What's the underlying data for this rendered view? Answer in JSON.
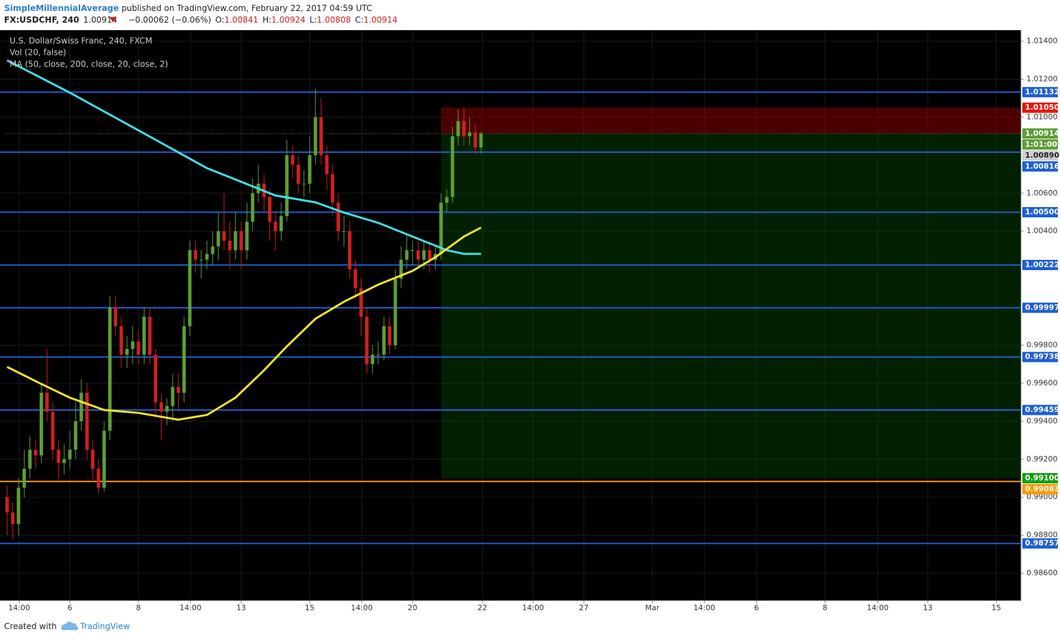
{
  "header": {
    "author": "SimpleMillennialAverage",
    "published": " published on TradingView.com, February 22, 2017 04:59 UTC",
    "symbol": "FX:USDCHF, 240",
    "change": "−0.00062 (−0.06%)",
    "o_label": "O:",
    "h_label": "H:",
    "l_label": "L:",
    "c_label": "C:"
  },
  "chart_data": {
    "type": "candlestick",
    "legend": [
      "U.S. Dollar/Swiss Franc, 240, FXCM",
      "Vol (20, false)",
      "MA (50, close, 200, close, 20, close, 2)"
    ],
    "x": [
      -11,
      -10,
      -9,
      -8,
      -7,
      -6,
      -5,
      -4,
      -3,
      -2,
      -1,
      0,
      1,
      2,
      3,
      4,
      5,
      6,
      7,
      8,
      9,
      10,
      11,
      12,
      13,
      14,
      15,
      16,
      17,
      18,
      19,
      20,
      21,
      22,
      23,
      24,
      25,
      26,
      27,
      28,
      29,
      30,
      31,
      32,
      33,
      34,
      35,
      36,
      37,
      38,
      39,
      40,
      41,
      42,
      43,
      44,
      45,
      46,
      47,
      48,
      49,
      50,
      51,
      52,
      53,
      54,
      55,
      56,
      57,
      58,
      59,
      60,
      61,
      62,
      63,
      64,
      65,
      66,
      67,
      68,
      69,
      70,
      71,
      72
    ],
    "open": [
      0.99,
      0.9892,
      0.9886,
      0.9905,
      0.9915,
      0.9925,
      0.9922,
      0.9955,
      0.9945,
      0.9925,
      0.9918,
      0.992,
      0.9925,
      0.994,
      0.9955,
      0.9925,
      0.9915,
      0.9905,
      0.9935,
      1,
      0.999,
      0.9975,
      0.9978,
      0.9982,
      0.9975,
      0.9995,
      0.9975,
      0.995,
      0.9945,
      0.9948,
      0.9958,
      0.9955,
      0.999,
      1.003,
      1.0025,
      1.0025,
      1.0028,
      1.0032,
      1.004,
      1.0035,
      1.003,
      1.004,
      1.003,
      1.0045,
      1.006,
      1.0065,
      1.0058,
      1.0045,
      1.004,
      1.0048,
      1.008,
      1.0075,
      1.0065,
      1.0065,
      1.008,
      1.01,
      1.008,
      1.007,
      1.0055,
      1.004,
      1.004,
      1.002,
      1.001,
      0.9995,
      0.997,
      0.9975,
      0.9975,
      0.999,
      0.998,
      1.0015,
      1.0025,
      1.003,
      1.003,
      1.0025,
      1.003,
      1.0025,
      1.0028,
      1.0055,
      1.0058,
      1.009,
      1.0098,
      1.009,
      1.0092,
      1.00841
    ],
    "high": [
      0.9906,
      0.9897,
      0.991,
      0.9925,
      0.9932,
      0.993,
      0.996,
      0.9978,
      0.995,
      0.993,
      0.9928,
      0.9935,
      0.995,
      0.9962,
      0.996,
      0.993,
      0.992,
      0.994,
      1.0006,
      1.0006,
      0.9995,
      0.9985,
      0.999,
      0.9988,
      1,
      1,
      0.9978,
      0.9955,
      0.9952,
      0.9965,
      0.9965,
      0.9995,
      1.0035,
      1.0035,
      1.003,
      1.0035,
      1.004,
      1.005,
      1.006,
      1.0045,
      1.005,
      1.0045,
      1.0055,
      1.0068,
      1.0075,
      1.007,
      1.0062,
      1.005,
      1.0055,
      1.0088,
      1.0085,
      1.008,
      1.0072,
      1.009,
      1.0115,
      1.011,
      1.0085,
      1.0075,
      1.006,
      1.0048,
      1.0045,
      1.0025,
      1.0015,
      1,
      0.998,
      0.9982,
      0.9995,
      0.9995,
      1.002,
      1.0032,
      1.0038,
      1.0035,
      1.0035,
      1.0035,
      1.0035,
      1.0032,
      1.006,
      1.0062,
      1.0095,
      1.0104,
      1.0105,
      1.01,
      1.0096,
      1.00924
    ],
    "low": [
      0.988,
      0.9878,
      0.988,
      0.99,
      0.991,
      0.9915,
      0.9918,
      0.994,
      0.992,
      0.991,
      0.9912,
      0.9915,
      0.992,
      0.9935,
      0.992,
      0.9908,
      0.9902,
      0.9903,
      0.993,
      0.9985,
      0.9968,
      0.9968,
      0.997,
      0.997,
      0.997,
      0.997,
      0.9942,
      0.993,
      0.9938,
      0.994,
      0.9945,
      0.995,
      0.9985,
      1.0018,
      1.0015,
      1.002,
      1.0022,
      1.0025,
      1.003,
      1.002,
      1.0025,
      1.002,
      1.0025,
      1.004,
      1.0055,
      1.005,
      1.0035,
      1.003,
      1.0035,
      1.0045,
      1.0068,
      1.006,
      1.0058,
      1.006,
      1.0075,
      1.0075,
      1.0062,
      1.0048,
      1.0035,
      1.0032,
      1.0015,
      1.0005,
      0.9985,
      0.9965,
      0.9965,
      0.997,
      0.9972,
      0.9975,
      0.9978,
      1.001,
      1.002,
      1.0022,
      1.002,
      1.002,
      1.0018,
      1.002,
      1.0025,
      1.005,
      1.0055,
      1.0085,
      1.0085,
      1.0085,
      1.008,
      1.00808
    ],
    "close": [
      0.9892,
      0.9886,
      0.9905,
      0.9915,
      0.9925,
      0.9922,
      0.9955,
      0.9945,
      0.9925,
      0.9918,
      0.992,
      0.9925,
      0.994,
      0.9955,
      0.9925,
      0.9915,
      0.9905,
      0.9935,
      1,
      0.999,
      0.9975,
      0.9978,
      0.9982,
      0.9975,
      0.9995,
      0.9975,
      0.995,
      0.9945,
      0.9948,
      0.9958,
      0.9955,
      0.999,
      1.003,
      1.0025,
      1.0025,
      1.0028,
      1.0032,
      1.004,
      1.0035,
      1.003,
      1.004,
      1.003,
      1.0045,
      1.006,
      1.0065,
      1.0058,
      1.0045,
      1.004,
      1.0048,
      1.008,
      1.0075,
      1.0065,
      1.0065,
      1.008,
      1.01,
      1.008,
      1.007,
      1.0055,
      1.004,
      1.004,
      1.002,
      1.001,
      0.9995,
      0.997,
      0.9975,
      0.9975,
      0.999,
      0.998,
      1.0015,
      1.0025,
      1.003,
      1.003,
      1.0025,
      1.003,
      1.0025,
      1.0028,
      1.0055,
      1.0058,
      1.009,
      1.0098,
      1.009,
      1.0092,
      1.00841,
      1.00914
    ],
    "up_color": "#5d9e37",
    "down_color": "#d0201e",
    "moving_averages": [
      {
        "color": "#3fe0e8",
        "x": [
          -11,
          0,
          12,
          24,
          36,
          43,
          48,
          54,
          60,
          66,
          69,
          72
        ],
        "values": [
          1.01299,
          1.01129,
          1.00931,
          1.00732,
          1.00588,
          1.00552,
          1.00498,
          1.00444,
          1.00372,
          1.003,
          1.00281,
          1.00281
        ]
      },
      {
        "color": "#f5e52a",
        "x": [
          -11,
          -5,
          0,
          6,
          12,
          19,
          24,
          29,
          34,
          38,
          43,
          48,
          54,
          60,
          64,
          69,
          72
        ],
        "values": [
          0.99686,
          0.99596,
          0.99524,
          0.99459,
          0.99444,
          0.99408,
          0.99433,
          0.99524,
          0.99668,
          0.99794,
          0.99939,
          1.00029,
          1.00119,
          1.00191,
          1.00263,
          1.00372,
          1.00419
        ]
      }
    ],
    "levels": [
      {
        "value": 1.01132,
        "label": "1.01132",
        "color": "#1f5fd4"
      },
      {
        "value": 1.00816,
        "label": "1.00816",
        "color": "#1f5fd4"
      },
      {
        "value": 1.005,
        "label": "1.00500",
        "color": "#1f5fd4"
      },
      {
        "value": 1.00222,
        "label": "1.00222",
        "color": "#1f5fd4"
      },
      {
        "value": 0.99997,
        "label": "0.99997",
        "color": "#1f5fd4"
      },
      {
        "value": 0.99738,
        "label": "0.99738",
        "color": "#1f5fd4"
      },
      {
        "value": 0.99459,
        "label": "0.99459",
        "color": "#1f5fd4"
      },
      {
        "value": 0.99083,
        "label": "0.99083",
        "color": "#ff9800"
      },
      {
        "value": 0.98757,
        "label": "0.98757",
        "color": "#1f5fd4"
      }
    ],
    "price_labels": [
      {
        "value": 1.0105,
        "label": "1.01050",
        "color": "#e8140c"
      },
      {
        "value": 1.00914,
        "label": "1.00914",
        "color": "#5d9e37"
      },
      {
        "value": 1.0089,
        "label": "1.00890",
        "color": "#cfcfcf"
      },
      {
        "value": 0.991,
        "label": "0.99100",
        "color": "#13a013"
      }
    ],
    "countdown": "1:01:00",
    "position": {
      "start": 65,
      "stop": 1.0105,
      "entry": 1.00914,
      "target": 0.991
    },
    "xlim": [
      -11.28,
      166.56
    ],
    "ylim": [
      0.98456,
      1.01458
    ],
    "xticks": [
      {
        "value": -8.88,
        "label": "14:00"
      },
      {
        "value": 0,
        "label": "6"
      },
      {
        "value": 12,
        "label": "8"
      },
      {
        "value": 21.12,
        "label": "14:00"
      },
      {
        "value": 30,
        "label": "13"
      },
      {
        "value": 42,
        "label": "15"
      },
      {
        "value": 51.12,
        "label": "14:00"
      },
      {
        "value": 60,
        "label": "20"
      },
      {
        "value": 72.24,
        "label": "22"
      },
      {
        "value": 81.12,
        "label": "14:00"
      },
      {
        "value": 90,
        "label": "27"
      },
      {
        "value": 102,
        "label": "Mar"
      },
      {
        "value": 111.12,
        "label": "14:00"
      },
      {
        "value": 120.24,
        "label": "6"
      },
      {
        "value": 132.24,
        "label": "8"
      },
      {
        "value": 141.48,
        "label": "14:00"
      },
      {
        "value": 150.24,
        "label": "13"
      },
      {
        "value": 162.24,
        "label": "15"
      }
    ],
    "yticks": [
      {
        "value": 1.014,
        "label": "1.01400"
      },
      {
        "value": 1.012,
        "label": "1.01200"
      },
      {
        "value": 1.01,
        "label": "1.01000"
      },
      {
        "value": 1.006,
        "label": "1.00600"
      },
      {
        "value": 1.004,
        "label": "1.00400"
      },
      {
        "value": 0.998,
        "label": "0.99800"
      },
      {
        "value": 0.996,
        "label": "0.99600"
      },
      {
        "value": 0.994,
        "label": "0.99400"
      },
      {
        "value": 0.992,
        "label": "0.99200"
      },
      {
        "value": 0.99,
        "label": "0.99000"
      },
      {
        "value": 0.988,
        "label": "0.98800"
      },
      {
        "value": 0.986,
        "label": "0.98600"
      }
    ],
    "grid": true
  },
  "footer": {
    "created": "Created with",
    "brand": "TradingView"
  }
}
